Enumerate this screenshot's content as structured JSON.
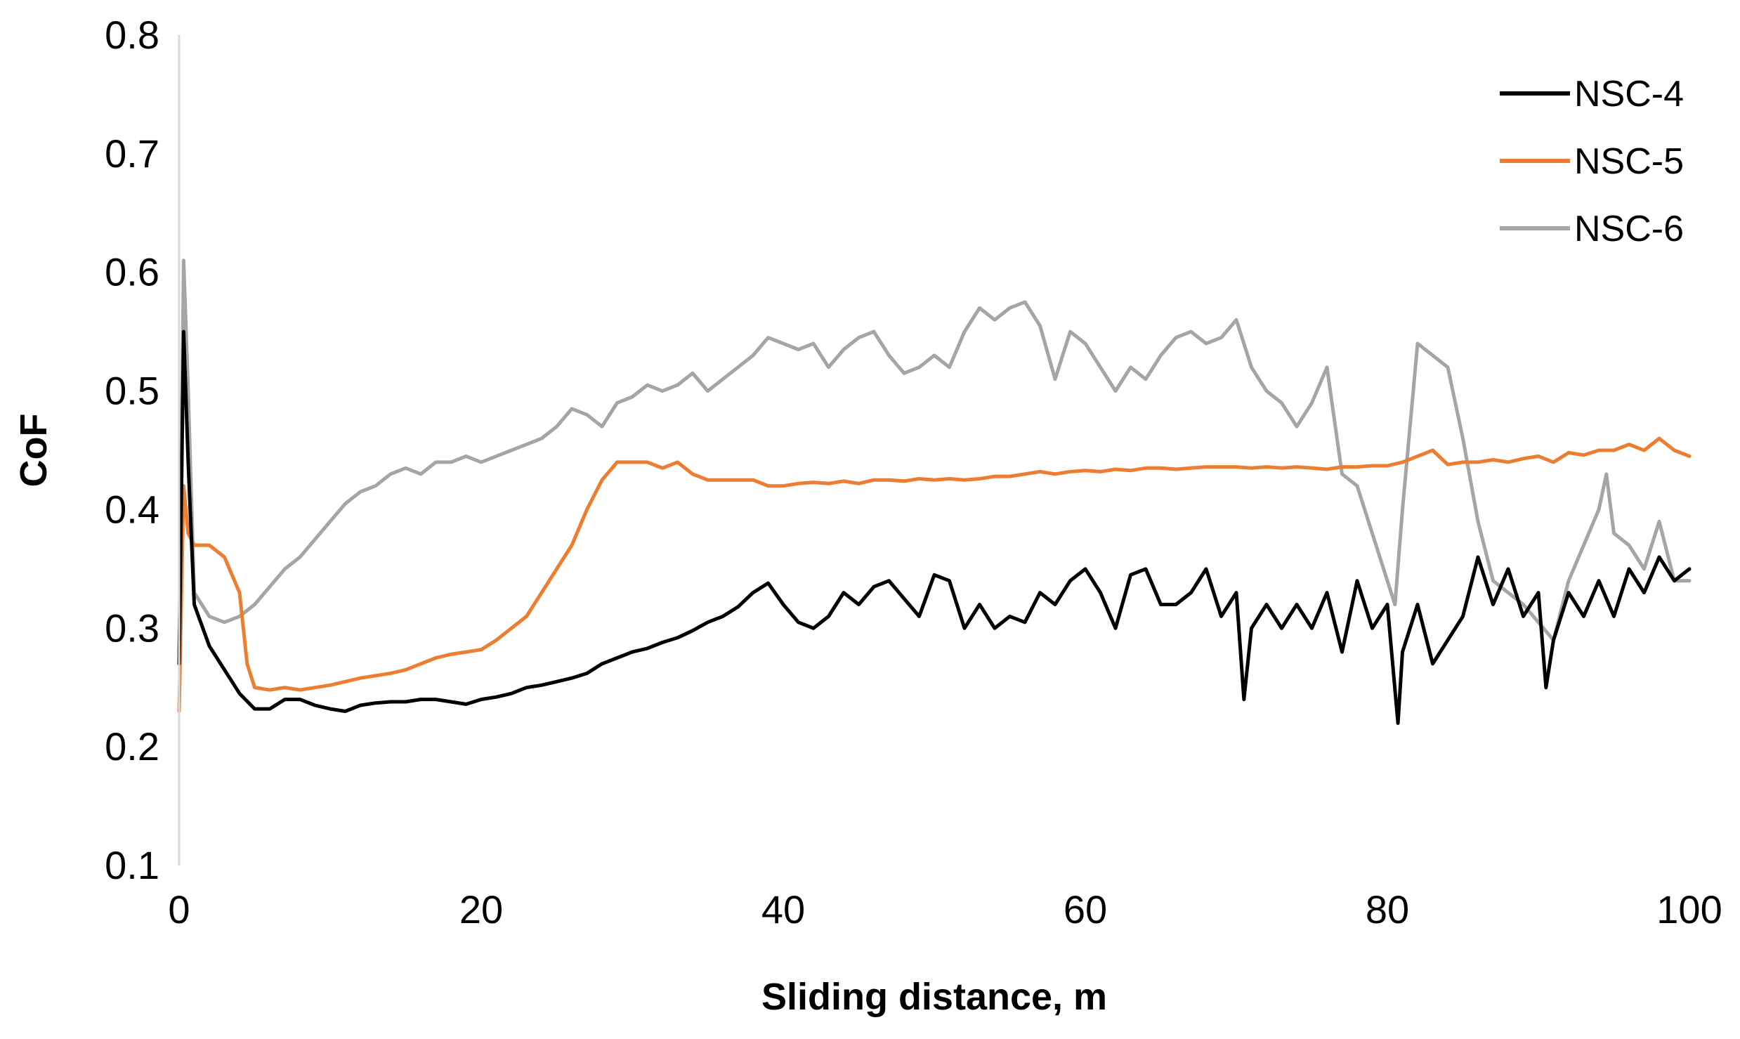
{
  "chart_data": {
    "type": "line",
    "title": "",
    "xlabel": "Sliding distance, m",
    "ylabel": "CoF",
    "xlim": [
      0,
      100
    ],
    "ylim": [
      0.1,
      0.8
    ],
    "xticks": [
      0,
      20,
      40,
      60,
      80,
      100
    ],
    "xtick_labels": [
      "0",
      "20",
      "40",
      "60",
      "80",
      "100"
    ],
    "yticks": [
      0.1,
      0.2,
      0.3,
      0.4,
      0.5,
      0.6,
      0.7,
      0.8
    ],
    "ytick_labels": [
      "0.1",
      "0.2",
      "0.3",
      "0.4",
      "0.5",
      "0.6",
      "0.7",
      "0.8"
    ],
    "grid": false,
    "legend_position": "top-right",
    "series": [
      {
        "name": "NSC-4",
        "color": "#000000",
        "points": [
          [
            0,
            0.27
          ],
          [
            0.3,
            0.55
          ],
          [
            0.6,
            0.44
          ],
          [
            1,
            0.32
          ],
          [
            2,
            0.285
          ],
          [
            3,
            0.265
          ],
          [
            4,
            0.245
          ],
          [
            5,
            0.232
          ],
          [
            6,
            0.232
          ],
          [
            7,
            0.24
          ],
          [
            8,
            0.24
          ],
          [
            9,
            0.235
          ],
          [
            10,
            0.232
          ],
          [
            11,
            0.23
          ],
          [
            12,
            0.235
          ],
          [
            13,
            0.237
          ],
          [
            14,
            0.238
          ],
          [
            15,
            0.238
          ],
          [
            16,
            0.24
          ],
          [
            17,
            0.24
          ],
          [
            18,
            0.238
          ],
          [
            19,
            0.236
          ],
          [
            20,
            0.24
          ],
          [
            21,
            0.242
          ],
          [
            22,
            0.245
          ],
          [
            23,
            0.25
          ],
          [
            24,
            0.252
          ],
          [
            25,
            0.255
          ],
          [
            26,
            0.258
          ],
          [
            27,
            0.262
          ],
          [
            28,
            0.27
          ],
          [
            29,
            0.275
          ],
          [
            30,
            0.28
          ],
          [
            31,
            0.283
          ],
          [
            32,
            0.288
          ],
          [
            33,
            0.292
          ],
          [
            34,
            0.298
          ],
          [
            35,
            0.305
          ],
          [
            36,
            0.31
          ],
          [
            37,
            0.318
          ],
          [
            38,
            0.33
          ],
          [
            39,
            0.338
          ],
          [
            40,
            0.32
          ],
          [
            41,
            0.305
          ],
          [
            42,
            0.3
          ],
          [
            43,
            0.31
          ],
          [
            44,
            0.33
          ],
          [
            45,
            0.32
          ],
          [
            46,
            0.335
          ],
          [
            47,
            0.34
          ],
          [
            48,
            0.325
          ],
          [
            49,
            0.31
          ],
          [
            50,
            0.345
          ],
          [
            51,
            0.34
          ],
          [
            52,
            0.3
          ],
          [
            53,
            0.32
          ],
          [
            54,
            0.3
          ],
          [
            55,
            0.31
          ],
          [
            56,
            0.305
          ],
          [
            57,
            0.33
          ],
          [
            58,
            0.32
          ],
          [
            59,
            0.34
          ],
          [
            60,
            0.35
          ],
          [
            61,
            0.33
          ],
          [
            62,
            0.3
          ],
          [
            63,
            0.345
          ],
          [
            64,
            0.35
          ],
          [
            65,
            0.32
          ],
          [
            66,
            0.32
          ],
          [
            67,
            0.33
          ],
          [
            68,
            0.35
          ],
          [
            69,
            0.31
          ],
          [
            70,
            0.33
          ],
          [
            70.5,
            0.24
          ],
          [
            71,
            0.3
          ],
          [
            72,
            0.32
          ],
          [
            73,
            0.3
          ],
          [
            74,
            0.32
          ],
          [
            75,
            0.3
          ],
          [
            76,
            0.33
          ],
          [
            77,
            0.28
          ],
          [
            78,
            0.34
          ],
          [
            79,
            0.3
          ],
          [
            80,
            0.32
          ],
          [
            80.7,
            0.22
          ],
          [
            81,
            0.28
          ],
          [
            82,
            0.32
          ],
          [
            83,
            0.27
          ],
          [
            84,
            0.29
          ],
          [
            85,
            0.31
          ],
          [
            86,
            0.36
          ],
          [
            87,
            0.32
          ],
          [
            88,
            0.35
          ],
          [
            89,
            0.31
          ],
          [
            90,
            0.33
          ],
          [
            90.5,
            0.25
          ],
          [
            91,
            0.29
          ],
          [
            92,
            0.33
          ],
          [
            93,
            0.31
          ],
          [
            94,
            0.34
          ],
          [
            95,
            0.31
          ],
          [
            96,
            0.35
          ],
          [
            97,
            0.33
          ],
          [
            98,
            0.36
          ],
          [
            99,
            0.34
          ],
          [
            100,
            0.35
          ]
        ]
      },
      {
        "name": "NSC-5",
        "color": "#ED7D31",
        "points": [
          [
            0,
            0.23
          ],
          [
            0.3,
            0.42
          ],
          [
            0.6,
            0.38
          ],
          [
            1,
            0.37
          ],
          [
            2,
            0.37
          ],
          [
            3,
            0.36
          ],
          [
            4,
            0.33
          ],
          [
            4.5,
            0.27
          ],
          [
            5,
            0.25
          ],
          [
            6,
            0.248
          ],
          [
            7,
            0.25
          ],
          [
            8,
            0.248
          ],
          [
            9,
            0.25
          ],
          [
            10,
            0.252
          ],
          [
            11,
            0.255
          ],
          [
            12,
            0.258
          ],
          [
            13,
            0.26
          ],
          [
            14,
            0.262
          ],
          [
            15,
            0.265
          ],
          [
            16,
            0.27
          ],
          [
            17,
            0.275
          ],
          [
            18,
            0.278
          ],
          [
            19,
            0.28
          ],
          [
            20,
            0.282
          ],
          [
            21,
            0.29
          ],
          [
            22,
            0.3
          ],
          [
            23,
            0.31
          ],
          [
            24,
            0.33
          ],
          [
            25,
            0.35
          ],
          [
            26,
            0.37
          ],
          [
            27,
            0.4
          ],
          [
            28,
            0.425
          ],
          [
            29,
            0.44
          ],
          [
            30,
            0.44
          ],
          [
            31,
            0.44
          ],
          [
            32,
            0.435
          ],
          [
            33,
            0.44
          ],
          [
            34,
            0.43
          ],
          [
            35,
            0.425
          ],
          [
            36,
            0.425
          ],
          [
            37,
            0.425
          ],
          [
            38,
            0.425
          ],
          [
            39,
            0.42
          ],
          [
            40,
            0.42
          ],
          [
            41,
            0.422
          ],
          [
            42,
            0.423
          ],
          [
            43,
            0.422
          ],
          [
            44,
            0.424
          ],
          [
            45,
            0.422
          ],
          [
            46,
            0.425
          ],
          [
            47,
            0.425
          ],
          [
            48,
            0.424
          ],
          [
            49,
            0.426
          ],
          [
            50,
            0.425
          ],
          [
            51,
            0.426
          ],
          [
            52,
            0.425
          ],
          [
            53,
            0.426
          ],
          [
            54,
            0.428
          ],
          [
            55,
            0.428
          ],
          [
            56,
            0.43
          ],
          [
            57,
            0.432
          ],
          [
            58,
            0.43
          ],
          [
            59,
            0.432
          ],
          [
            60,
            0.433
          ],
          [
            61,
            0.432
          ],
          [
            62,
            0.434
          ],
          [
            63,
            0.433
          ],
          [
            64,
            0.435
          ],
          [
            65,
            0.435
          ],
          [
            66,
            0.434
          ],
          [
            67,
            0.435
          ],
          [
            68,
            0.436
          ],
          [
            69,
            0.436
          ],
          [
            70,
            0.436
          ],
          [
            71,
            0.435
          ],
          [
            72,
            0.436
          ],
          [
            73,
            0.435
          ],
          [
            74,
            0.436
          ],
          [
            75,
            0.435
          ],
          [
            76,
            0.434
          ],
          [
            77,
            0.436
          ],
          [
            78,
            0.436
          ],
          [
            79,
            0.437
          ],
          [
            80,
            0.437
          ],
          [
            81,
            0.44
          ],
          [
            82,
            0.445
          ],
          [
            83,
            0.45
          ],
          [
            84,
            0.438
          ],
          [
            85,
            0.44
          ],
          [
            86,
            0.44
          ],
          [
            87,
            0.442
          ],
          [
            88,
            0.44
          ],
          [
            89,
            0.443
          ],
          [
            90,
            0.445
          ],
          [
            91,
            0.44
          ],
          [
            92,
            0.448
          ],
          [
            93,
            0.446
          ],
          [
            94,
            0.45
          ],
          [
            95,
            0.45
          ],
          [
            96,
            0.455
          ],
          [
            97,
            0.45
          ],
          [
            98,
            0.46
          ],
          [
            99,
            0.45
          ],
          [
            100,
            0.445
          ]
        ]
      },
      {
        "name": "NSC-6",
        "color": "#A5A5A5",
        "points": [
          [
            0,
            0.28
          ],
          [
            0.3,
            0.61
          ],
          [
            0.6,
            0.5
          ],
          [
            1,
            0.33
          ],
          [
            2,
            0.31
          ],
          [
            3,
            0.305
          ],
          [
            4,
            0.31
          ],
          [
            5,
            0.32
          ],
          [
            6,
            0.335
          ],
          [
            7,
            0.35
          ],
          [
            8,
            0.36
          ],
          [
            9,
            0.375
          ],
          [
            10,
            0.39
          ],
          [
            11,
            0.405
          ],
          [
            12,
            0.415
          ],
          [
            13,
            0.42
          ],
          [
            14,
            0.43
          ],
          [
            15,
            0.435
          ],
          [
            16,
            0.43
          ],
          [
            17,
            0.44
          ],
          [
            18,
            0.44
          ],
          [
            19,
            0.445
          ],
          [
            20,
            0.44
          ],
          [
            21,
            0.445
          ],
          [
            22,
            0.45
          ],
          [
            23,
            0.455
          ],
          [
            24,
            0.46
          ],
          [
            25,
            0.47
          ],
          [
            26,
            0.485
          ],
          [
            27,
            0.48
          ],
          [
            28,
            0.47
          ],
          [
            29,
            0.49
          ],
          [
            30,
            0.495
          ],
          [
            31,
            0.505
          ],
          [
            32,
            0.5
          ],
          [
            33,
            0.505
          ],
          [
            34,
            0.515
          ],
          [
            35,
            0.5
          ],
          [
            36,
            0.51
          ],
          [
            37,
            0.52
          ],
          [
            38,
            0.53
          ],
          [
            39,
            0.545
          ],
          [
            40,
            0.54
          ],
          [
            41,
            0.535
          ],
          [
            42,
            0.54
          ],
          [
            43,
            0.52
          ],
          [
            44,
            0.535
          ],
          [
            45,
            0.545
          ],
          [
            46,
            0.55
          ],
          [
            47,
            0.53
          ],
          [
            48,
            0.515
          ],
          [
            49,
            0.52
          ],
          [
            50,
            0.53
          ],
          [
            51,
            0.52
          ],
          [
            52,
            0.55
          ],
          [
            53,
            0.57
          ],
          [
            54,
            0.56
          ],
          [
            55,
            0.57
          ],
          [
            56,
            0.575
          ],
          [
            57,
            0.555
          ],
          [
            58,
            0.51
          ],
          [
            59,
            0.55
          ],
          [
            60,
            0.54
          ],
          [
            61,
            0.52
          ],
          [
            62,
            0.5
          ],
          [
            63,
            0.52
          ],
          [
            64,
            0.51
          ],
          [
            65,
            0.53
          ],
          [
            66,
            0.545
          ],
          [
            67,
            0.55
          ],
          [
            68,
            0.54
          ],
          [
            69,
            0.545
          ],
          [
            70,
            0.56
          ],
          [
            71,
            0.52
          ],
          [
            72,
            0.5
          ],
          [
            73,
            0.49
          ],
          [
            74,
            0.47
          ],
          [
            75,
            0.49
          ],
          [
            76,
            0.52
          ],
          [
            77,
            0.43
          ],
          [
            78,
            0.42
          ],
          [
            79,
            0.38
          ],
          [
            80,
            0.34
          ],
          [
            80.5,
            0.32
          ],
          [
            81,
            0.4
          ],
          [
            82,
            0.54
          ],
          [
            83,
            0.53
          ],
          [
            84,
            0.52
          ],
          [
            85,
            0.46
          ],
          [
            86,
            0.39
          ],
          [
            87,
            0.34
          ],
          [
            88,
            0.33
          ],
          [
            89,
            0.32
          ],
          [
            90,
            0.305
          ],
          [
            91,
            0.29
          ],
          [
            92,
            0.34
          ],
          [
            93,
            0.37
          ],
          [
            94,
            0.4
          ],
          [
            94.5,
            0.43
          ],
          [
            95,
            0.38
          ],
          [
            96,
            0.37
          ],
          [
            97,
            0.35
          ],
          [
            98,
            0.39
          ],
          [
            99,
            0.34
          ],
          [
            100,
            0.34
          ]
        ]
      }
    ]
  }
}
